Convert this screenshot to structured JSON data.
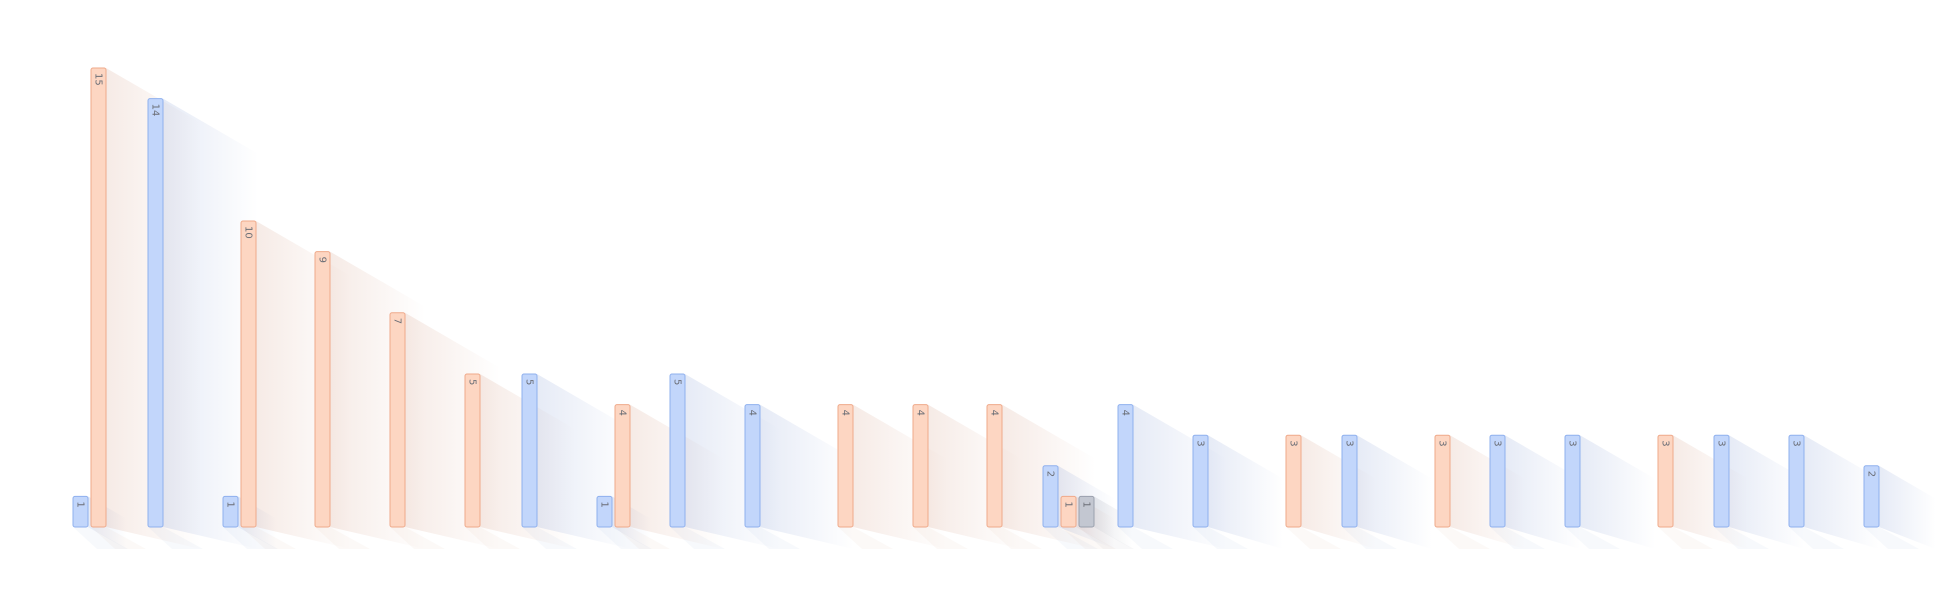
{
  "chart_data": {
    "type": "bar",
    "title": "",
    "xlabel": "",
    "ylabel": "",
    "ylim": [
      0,
      15.5
    ],
    "grid": false,
    "legend": "none",
    "series_colors": {
      "blue": {
        "fill": "#c2d6fb",
        "stroke": "#8fb0ee",
        "shadow": "#8da3d6"
      },
      "orange": {
        "fill": "#fdd6c2",
        "stroke": "#efa98a",
        "shadow": "#d6a38d"
      },
      "gray": {
        "fill": "#c3c7d1",
        "stroke": "#9aa0ad",
        "shadow": "#9aa0ad"
      }
    },
    "groups": [
      {
        "bars": [
          {
            "value": 1,
            "label": "1",
            "color": "blue"
          },
          {
            "value": 15,
            "label": "15",
            "color": "orange"
          }
        ]
      },
      {
        "bars": [
          {
            "value": 14,
            "label": "14",
            "color": "blue"
          }
        ]
      },
      {
        "bars": [
          {
            "value": 1,
            "label": "1",
            "color": "blue"
          },
          {
            "value": 10,
            "label": "10",
            "color": "orange"
          }
        ]
      },
      {
        "bars": [
          {
            "value": 9,
            "label": "9",
            "color": "orange"
          }
        ]
      },
      {
        "bars": [
          {
            "value": 7,
            "label": "7",
            "color": "orange"
          }
        ]
      },
      {
        "bars": [
          {
            "value": 5,
            "label": "5",
            "color": "orange"
          }
        ]
      },
      {
        "bars": [
          {
            "value": 5,
            "label": "5",
            "color": "blue"
          }
        ]
      },
      {
        "bars": [
          {
            "value": 1,
            "label": "1",
            "color": "blue"
          },
          {
            "value": 4,
            "label": "4",
            "color": "orange"
          }
        ]
      },
      {
        "bars": [
          {
            "value": 5,
            "label": "5",
            "color": "blue"
          }
        ]
      },
      {
        "bars": [
          {
            "value": 4,
            "label": "4",
            "color": "blue"
          }
        ]
      },
      {
        "bars": [
          {
            "value": 4,
            "label": "4",
            "color": "orange"
          }
        ]
      },
      {
        "bars": [
          {
            "value": 4,
            "label": "4",
            "color": "orange"
          }
        ]
      },
      {
        "bars": [
          {
            "value": 4,
            "label": "4",
            "color": "orange"
          }
        ]
      },
      {
        "bars": [
          {
            "value": 2,
            "label": "2",
            "color": "blue"
          },
          {
            "value": 1,
            "label": "1",
            "color": "orange"
          },
          {
            "value": 1,
            "label": "1",
            "color": "gray"
          }
        ]
      },
      {
        "bars": [
          {
            "value": 4,
            "label": "4",
            "color": "blue"
          }
        ]
      },
      {
        "bars": [
          {
            "value": 3,
            "label": "3",
            "color": "blue"
          }
        ]
      },
      {
        "bars": [
          {
            "value": 3,
            "label": "3",
            "color": "orange"
          }
        ]
      },
      {
        "bars": [
          {
            "value": 3,
            "label": "3",
            "color": "blue"
          }
        ]
      },
      {
        "bars": [
          {
            "value": 3,
            "label": "3",
            "color": "orange"
          }
        ]
      },
      {
        "bars": [
          {
            "value": 3,
            "label": "3",
            "color": "blue"
          }
        ]
      },
      {
        "bars": [
          {
            "value": 3,
            "label": "3",
            "color": "blue"
          }
        ]
      },
      {
        "bars": [
          {
            "value": 3,
            "label": "3",
            "color": "orange"
          }
        ]
      },
      {
        "bars": [
          {
            "value": 3,
            "label": "3",
            "color": "blue"
          }
        ]
      },
      {
        "bars": [
          {
            "value": 3,
            "label": "3",
            "color": "blue"
          }
        ]
      },
      {
        "bars": [
          {
            "value": 2,
            "label": "2",
            "color": "blue"
          }
        ]
      }
    ]
  }
}
